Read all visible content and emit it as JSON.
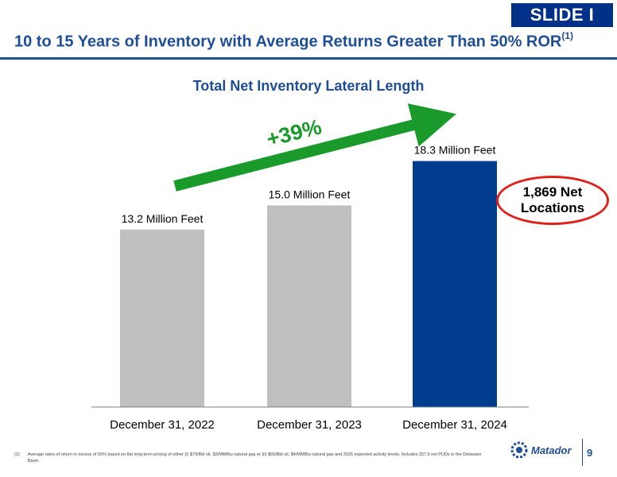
{
  "slide_tag": "SLIDE I",
  "header": {
    "title": "10 to 15 Years of Inventory with Average Returns Greater Than 50% ROR",
    "title_note": "(1)"
  },
  "chart_data": {
    "type": "bar",
    "title": "Total Net Inventory Lateral Length",
    "categories": [
      "December 31, 2022",
      "December 31, 2023",
      "December 31, 2024"
    ],
    "values": [
      13.2,
      15.0,
      18.3
    ],
    "data_labels": [
      "13.2 Million Feet",
      "15.0 Million Feet",
      "18.3 Million Feet"
    ],
    "unit": "Million Feet",
    "ylim": [
      0,
      22
    ],
    "colors": [
      "#bfbfbf",
      "#bfbfbf",
      "#003d8f"
    ],
    "annotation": {
      "text": "+39%",
      "color": "#1a9a2a"
    },
    "grid": false
  },
  "callout": {
    "line1": "1,869 Net",
    "line2": "Locations",
    "border_color": "#e0201b"
  },
  "footnote": {
    "marker": "(1)",
    "text": "Average rates of return in excess of 50% based on flat long-term pricing of either (i) $70/Bbl oil, $3/MMBtu natural gas or (ii) $60/Bbl oil, $4/MMBtu natural gas and 2025 expected activity levels. Includes 257.5 net PUDs in the Delaware Basin."
  },
  "logo": {
    "name": "Matador",
    "icon": "matador-wheel-icon"
  },
  "page_number": "9"
}
